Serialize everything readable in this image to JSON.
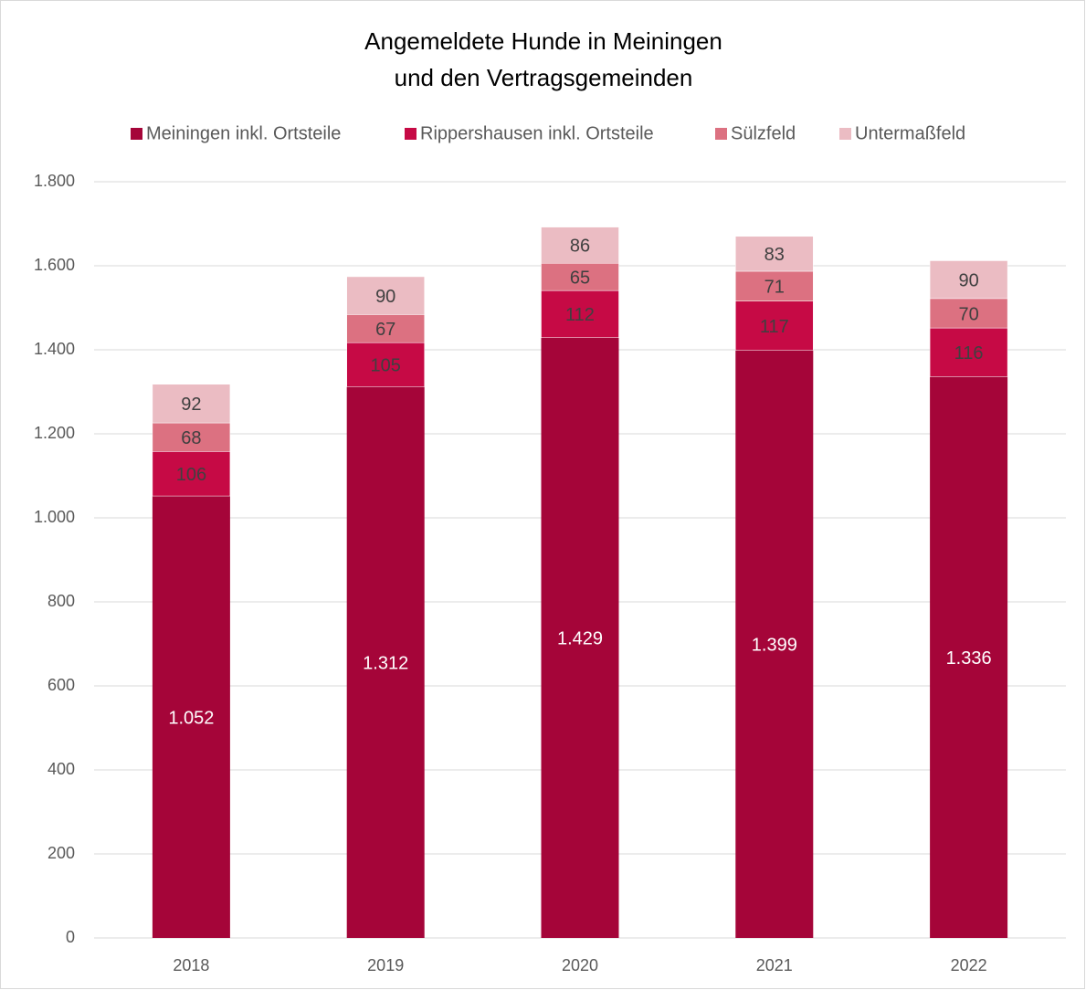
{
  "chart_data": {
    "type": "stacked-bar",
    "title": [
      "Angemeldete Hunde in Meiningen",
      "und den Vertragsgemeinden"
    ],
    "categories": [
      "2018",
      "2019",
      "2020",
      "2021",
      "2022"
    ],
    "series": [
      {
        "name": "Meiningen inkl. Ortsteile",
        "color": "#a50539",
        "label_color": "#ffffff",
        "values": [
          1052,
          1312,
          1429,
          1399,
          1336
        ],
        "value_labels": [
          "1.052",
          "1.312",
          "1.429",
          "1.399",
          "1.336"
        ]
      },
      {
        "name": "Rippershausen inkl. Ortsteile",
        "color": "#c60a45",
        "label_color": "#404040",
        "values": [
          106,
          105,
          112,
          117,
          116
        ]
      },
      {
        "name": "Sülzfeld",
        "color": "#dc7181",
        "label_color": "#404040",
        "values": [
          68,
          67,
          65,
          71,
          70
        ]
      },
      {
        "name": "Untermaßfeld",
        "color": "#ebbcc3",
        "label_color": "#404040",
        "values": [
          92,
          90,
          86,
          83,
          90
        ]
      }
    ],
    "ylim": [
      0,
      1800
    ],
    "yticks": [
      0,
      200,
      400,
      600,
      800,
      {
        "value": 1000,
        "label": "1.000"
      },
      {
        "value": 1200,
        "label": "1.200"
      },
      {
        "value": 1400,
        "label": "1.400"
      },
      {
        "value": 1600,
        "label": "1.600"
      },
      {
        "value": 1800,
        "label": "1.800"
      }
    ],
    "grid": true,
    "legend": "top"
  }
}
